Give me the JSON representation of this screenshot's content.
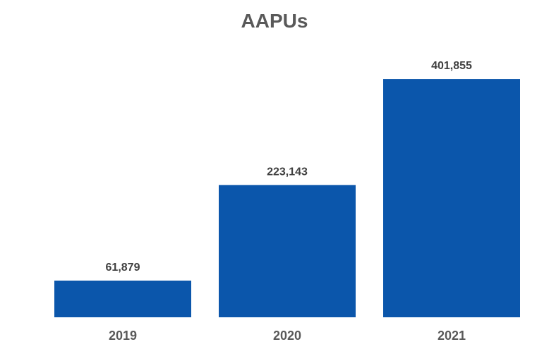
{
  "chart_data": {
    "type": "bar",
    "title": "AAPUs",
    "categories": [
      "2019",
      "2020",
      "2021"
    ],
    "values": [
      61879,
      223143,
      401855
    ],
    "data_labels": [
      "61,879",
      "223,143",
      "401,855"
    ],
    "xlabel": "",
    "ylabel": "",
    "ylim": [
      0,
      440000
    ],
    "grid": false,
    "legend": "none",
    "bar_color": "#0B56AB"
  }
}
